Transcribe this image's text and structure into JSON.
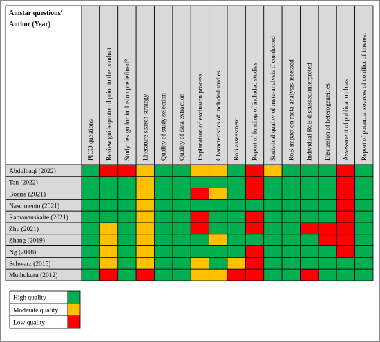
{
  "table": {
    "corner": [
      "Amstar questions/",
      "Author (Year)"
    ],
    "columns": [
      "PICO questions",
      "Review guide/protocol prior to the conduct",
      "Study design for inclusion predefined?",
      "Literature search strategy",
      "Quality of study selection",
      "Quality of data extraction",
      "Explanation of exclusion process",
      "Characteristics of included studies",
      "RoB assessment",
      "Report of funding of included studies",
      "Statistical quality of meta-analysis if conducted",
      "RoB impact on meta-analysis assessed",
      "Individual RoB discussed/interpreted",
      "Discussion of heterogeneities",
      "Assessment of publication bias",
      "Report of potential sources of conflict of interest"
    ],
    "rows": [
      {
        "author": "Abdulbaqi (2022)",
        "cells": [
          "#00b050",
          "#ff0000",
          "#ff0000",
          "#ffc000",
          "#00b050",
          "#00b050",
          "#ffc000",
          "#ffc000",
          "#00b050",
          "#ff0000",
          "#ffc000",
          "#00b050",
          "#00b050",
          "#00b050",
          "#ff0000",
          "#00b050"
        ]
      },
      {
        "author": "Tan (2022)",
        "cells": [
          "#00b050",
          "#00b050",
          "#00b050",
          "#ffc000",
          "#00b050",
          "#00b050",
          "#00b050",
          "#00b050",
          "#00b050",
          "#ff0000",
          "#00b050",
          "#00b050",
          "#00b050",
          "#00b050",
          "#ff0000",
          "#00b050"
        ]
      },
      {
        "author": "Boeira (2021)",
        "cells": [
          "#00b050",
          "#00b050",
          "#00b050",
          "#ffc000",
          "#00b050",
          "#00b050",
          "#ff0000",
          "#ffc000",
          "#00b050",
          "#ff0000",
          "#00b050",
          "#00b050",
          "#00b050",
          "#00b050",
          "#ff0000",
          "#00b050"
        ]
      },
      {
        "author": "Nascimento (2021)",
        "cells": [
          "#00b050",
          "#00b050",
          "#00b050",
          "#ffc000",
          "#00b050",
          "#00b050",
          "#00b050",
          "#00b050",
          "#00b050",
          "#00b050",
          "#00b050",
          "#00b050",
          "#00b050",
          "#00b050",
          "#ff0000",
          "#00b050"
        ]
      },
      {
        "author": "Ramanauskaite (2021)",
        "cells": [
          "#00b050",
          "#00b050",
          "#00b050",
          "#ffc000",
          "#00b050",
          "#00b050",
          "#ff0000",
          "#00b050",
          "#00b050",
          "#ff0000",
          "#00b050",
          "#00b050",
          "#00b050",
          "#00b050",
          "#ff0000",
          "#00b050"
        ]
      },
      {
        "author": "Zhu (2021)",
        "cells": [
          "#00b050",
          "#ffc000",
          "#00b050",
          "#ffc000",
          "#00b050",
          "#00b050",
          "#ff0000",
          "#00b050",
          "#00b050",
          "#ff0000",
          "#00b050",
          "#00b050",
          "#ff0000",
          "#ff0000",
          "#ff0000",
          "#00b050"
        ]
      },
      {
        "author": "Zhang (2019)",
        "cells": [
          "#00b050",
          "#ffc000",
          "#00b050",
          "#ffc000",
          "#00b050",
          "#00b050",
          "#00b050",
          "#ffc000",
          "#00b050",
          "#00b050",
          "#00b050",
          "#00b050",
          "#00b050",
          "#ff0000",
          "#ff0000",
          "#00b050"
        ]
      },
      {
        "author": "Ng (2018)",
        "cells": [
          "#00b050",
          "#ffc000",
          "#00b050",
          "#ffc000",
          "#00b050",
          "#00b050",
          "#00b050",
          "#00b050",
          "#00b050",
          "#ff0000",
          "#00b050",
          "#00b050",
          "#00b050",
          "#00b050",
          "#ff0000",
          "#00b050"
        ]
      },
      {
        "author": "Schwarz (2015)",
        "cells": [
          "#00b050",
          "#ffc000",
          "#00b050",
          "#ffc000",
          "#00b050",
          "#00b050",
          "#ffc000",
          "#00b050",
          "#ffc000",
          "#ff0000",
          "#00b050",
          "#00b050",
          "#00b050",
          "#00b050",
          "#00b050",
          "#00b050"
        ]
      },
      {
        "author": "Muthukuru (2012)",
        "cells": [
          "#00b050",
          "#ff0000",
          "#00b050",
          "#ff0000",
          "#00b050",
          "#00b050",
          "#ffc000",
          "#ffc000",
          "#ff0000",
          "#ff0000",
          "#00b050",
          "#00b050",
          "#ff0000",
          "#00b050",
          "#00b050",
          "#00b050"
        ]
      }
    ]
  },
  "legend": [
    {
      "label": "High quality",
      "color": "#00b050"
    },
    {
      "label": "Moderate quality",
      "color": "#ffc000"
    },
    {
      "label": "Low quality",
      "color": "#ff0000"
    }
  ]
}
